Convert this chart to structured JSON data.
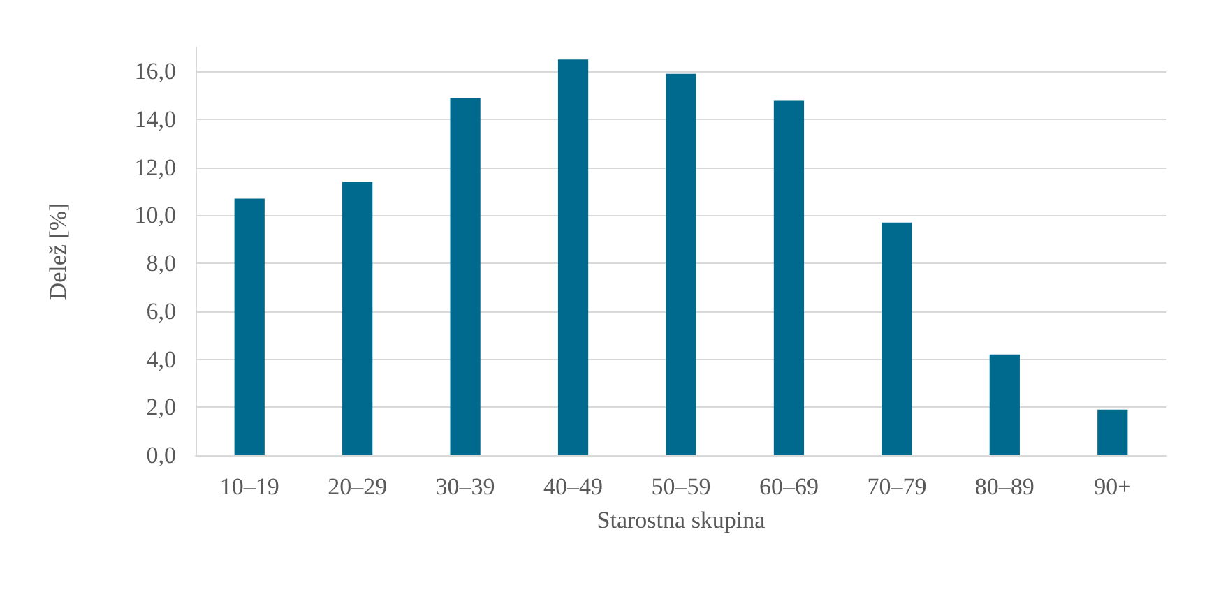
{
  "chart_data": {
    "type": "bar",
    "xlabel": "Starostna skupina",
    "ylabel": "Delež [%]",
    "categories": [
      "10–19",
      "20–29",
      "30–39",
      "40–49",
      "50–59",
      "60–69",
      "70–79",
      "80–89",
      "90+"
    ],
    "values": [
      10.7,
      11.4,
      14.9,
      16.5,
      15.9,
      14.8,
      9.7,
      4.2,
      1.9
    ],
    "color": "#006a8e",
    "ylim": [
      0,
      17
    ],
    "yticks": [
      {
        "value": 0,
        "label": "0,0"
      },
      {
        "value": 2,
        "label": "2,0"
      },
      {
        "value": 4,
        "label": "4,0"
      },
      {
        "value": 6,
        "label": "6,0"
      },
      {
        "value": 8,
        "label": "8,0"
      },
      {
        "value": 10,
        "label": "10,0"
      },
      {
        "value": 12,
        "label": "12,0"
      },
      {
        "value": 14,
        "label": "14,0"
      },
      {
        "value": 16,
        "label": "16,0"
      }
    ],
    "grid": "y"
  }
}
